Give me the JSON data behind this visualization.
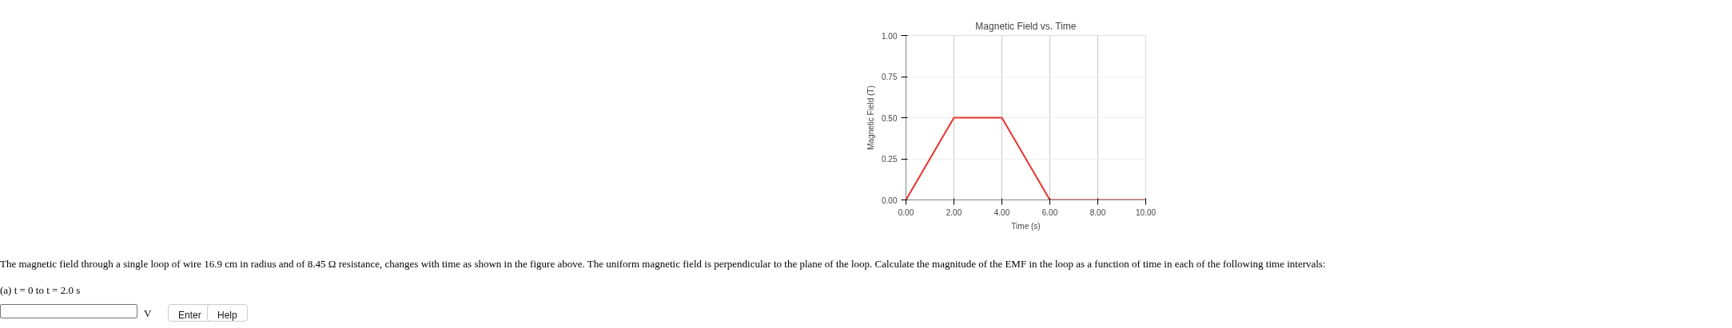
{
  "chart_data": {
    "type": "line",
    "title": "Magnetic Field vs. Time",
    "xlabel": "Time (s)",
    "ylabel": "Magnetic Field (T)",
    "x": [
      0,
      2,
      4,
      6,
      10
    ],
    "series": [
      {
        "color": "#e8352e",
        "values": [
          0,
          0.5,
          0.5,
          0,
          0
        ]
      }
    ],
    "xlim": [
      0,
      10
    ],
    "ylim": [
      0,
      1
    ],
    "xticks": [
      {
        "value": 0,
        "label": "0.00"
      },
      {
        "value": 2,
        "label": "2.00"
      },
      {
        "value": 4,
        "label": "4.00"
      },
      {
        "value": 6,
        "label": "6.00"
      },
      {
        "value": 8,
        "label": "8.00"
      },
      {
        "value": 10,
        "label": "10.00"
      }
    ],
    "yticks": [
      {
        "value": 0,
        "label": "0.00"
      },
      {
        "value": 0.25,
        "label": "0.25"
      },
      {
        "value": 0.5,
        "label": "0.50"
      },
      {
        "value": 0.75,
        "label": "0.75"
      },
      {
        "value": 1,
        "label": "1.00"
      }
    ],
    "grid": true,
    "marker": "none",
    "line_style": "solid",
    "annotations": [
      "The magnetic field through a single loop of wire 16.9 cm in radius and of 8.45 Ω resistance, changes with time as shown in the figure above. The uniform magnetic field is perpendicular to the plane of the loop. Calculate the magnitude of the EMF in the loop as a function of time in each of the following time intervals:",
      "(a) t = 0 to t = 2.0 s",
      "V",
      "Enter",
      "Help"
    ]
  }
}
